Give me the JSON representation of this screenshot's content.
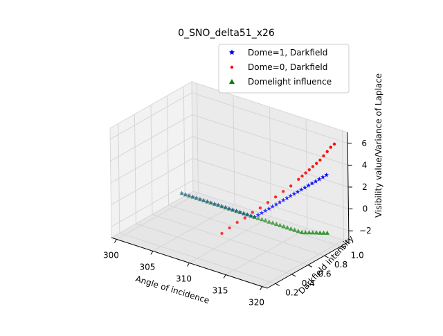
{
  "chart_data": {
    "type": "scatter3d",
    "title": "0_SNO_delta51_x26",
    "xlabel": "Angle of incidence",
    "ylabel": "Darkfield intensity",
    "zlabel": "Visibility value/Variance of Laplace",
    "xticks": [
      "300",
      "305",
      "310",
      "315",
      "320"
    ],
    "yticks": [
      "0.2",
      "0.4",
      "0.6",
      "0.8",
      "1.0"
    ],
    "zticks": [
      "−2",
      "0",
      "2",
      "4",
      "6"
    ],
    "xlim": [
      299.3,
      320.7
    ],
    "ylim": [
      0.1,
      1.1
    ],
    "zlim": [
      -3,
      7
    ],
    "grid": true,
    "legend_position": "top-right",
    "series": [
      {
        "name": "Dome=1, Darkfield",
        "marker": "star",
        "color": "#0000ff",
        "x": [
          300,
          300.5,
          301,
          301.5,
          302,
          302.5,
          303,
          303.5,
          304,
          304.5,
          305,
          305.5,
          306,
          306.5,
          307,
          307.5,
          308,
          308.5,
          309,
          309.5,
          310,
          310.5,
          311,
          311.5,
          312,
          312.5,
          313,
          313.5,
          314,
          314.5,
          315,
          315.5,
          316,
          316.5,
          317,
          317.5,
          318,
          318.5,
          319,
          319.5,
          320
        ],
        "y": [
          0.9,
          0.9,
          0.9,
          0.9,
          0.9,
          0.9,
          0.9,
          0.9,
          0.9,
          0.9,
          0.9,
          0.9,
          0.9,
          0.9,
          0.9,
          0.9,
          0.9,
          0.9,
          0.9,
          0.9,
          0.9,
          0.9,
          0.9,
          0.9,
          0.9,
          0.9,
          0.9,
          0.9,
          0.9,
          0.9,
          0.9,
          0.9,
          0.9,
          0.9,
          0.9,
          0.9,
          0.9,
          0.9,
          0.9,
          0.9,
          0.9
        ],
        "z": [
          -2.2,
          -2.2,
          -2.2,
          -2.2,
          -2.2,
          -2.2,
          -2.2,
          -2.2,
          -2.2,
          -2.2,
          -2.2,
          -2.2,
          -2.2,
          -2.2,
          -2.2,
          -2.2,
          -2.2,
          -2.2,
          -2.2,
          -2.2,
          -2.2,
          -1.9,
          -1.6,
          -1.3,
          -1.0,
          -0.7,
          -0.4,
          -0.1,
          0.2,
          0.5,
          0.8,
          1.1,
          1.4,
          1.7,
          2.0,
          2.3,
          2.6,
          2.9,
          3.2,
          3.5,
          3.8
        ]
      },
      {
        "name": "Dome=0, Darkfield",
        "marker": "dot",
        "color": "#ff0000",
        "x": [
          310,
          310.5,
          311,
          311.5,
          312,
          312.5,
          313,
          313.5,
          314,
          314.5,
          315,
          315.5,
          316,
          316.5,
          317,
          317.5,
          318,
          318.5,
          319,
          319.5,
          320
        ],
        "y": [
          0.5,
          0.55,
          0.6,
          0.65,
          0.7,
          0.75,
          0.8,
          0.85,
          0.9,
          0.95,
          1.0,
          1.0,
          1.0,
          1.0,
          1.0,
          1.0,
          1.0,
          1.0,
          1.0,
          1.0,
          1.0
        ],
        "z": [
          -2.0,
          -1.6,
          -1.2,
          -0.9,
          -0.5,
          -0.2,
          0.2,
          0.6,
          1.0,
          1.4,
          1.9,
          2.3,
          2.7,
          3.1,
          3.5,
          3.9,
          4.3,
          4.8,
          5.3,
          5.8,
          6.2
        ]
      },
      {
        "name": "Domelight influence",
        "marker": "triangle",
        "color": "#008000",
        "x": [
          300,
          300.5,
          301,
          301.5,
          302,
          302.5,
          303,
          303.5,
          304,
          304.5,
          305,
          305.5,
          306,
          306.5,
          307,
          307.5,
          308,
          308.5,
          309,
          309.5,
          310,
          310.5,
          311,
          311.5,
          312,
          312.5,
          313,
          313.5,
          314,
          314.5,
          315,
          315.5,
          316,
          316.5,
          317,
          317.5,
          318,
          318.5,
          319,
          319.5,
          320
        ],
        "y": [
          0.9,
          0.9,
          0.9,
          0.9,
          0.9,
          0.9,
          0.9,
          0.9,
          0.9,
          0.9,
          0.9,
          0.9,
          0.9,
          0.9,
          0.9,
          0.9,
          0.9,
          0.9,
          0.9,
          0.9,
          0.9,
          0.9,
          0.9,
          0.9,
          0.9,
          0.9,
          0.9,
          0.9,
          0.9,
          0.9,
          0.9,
          0.9,
          0.9,
          0.9,
          0.9,
          0.9,
          0.9,
          0.9,
          0.9,
          0.9,
          0.9
        ],
        "z": [
          -2.2,
          -2.2,
          -2.2,
          -2.2,
          -2.2,
          -2.2,
          -2.2,
          -2.2,
          -2.2,
          -2.2,
          -2.2,
          -2.2,
          -2.2,
          -2.2,
          -2.2,
          -2.2,
          -2.2,
          -2.2,
          -2.2,
          -2.2,
          -2.2,
          -2.2,
          -2.2,
          -2.2,
          -2.2,
          -2.2,
          -2.2,
          -2.2,
          -2.2,
          -2.2,
          -2.2,
          -2.2,
          -2.2,
          -2.2,
          -2.1,
          -2.0,
          -1.9,
          -1.8,
          -1.7,
          -1.6,
          -1.5
        ]
      }
    ]
  }
}
